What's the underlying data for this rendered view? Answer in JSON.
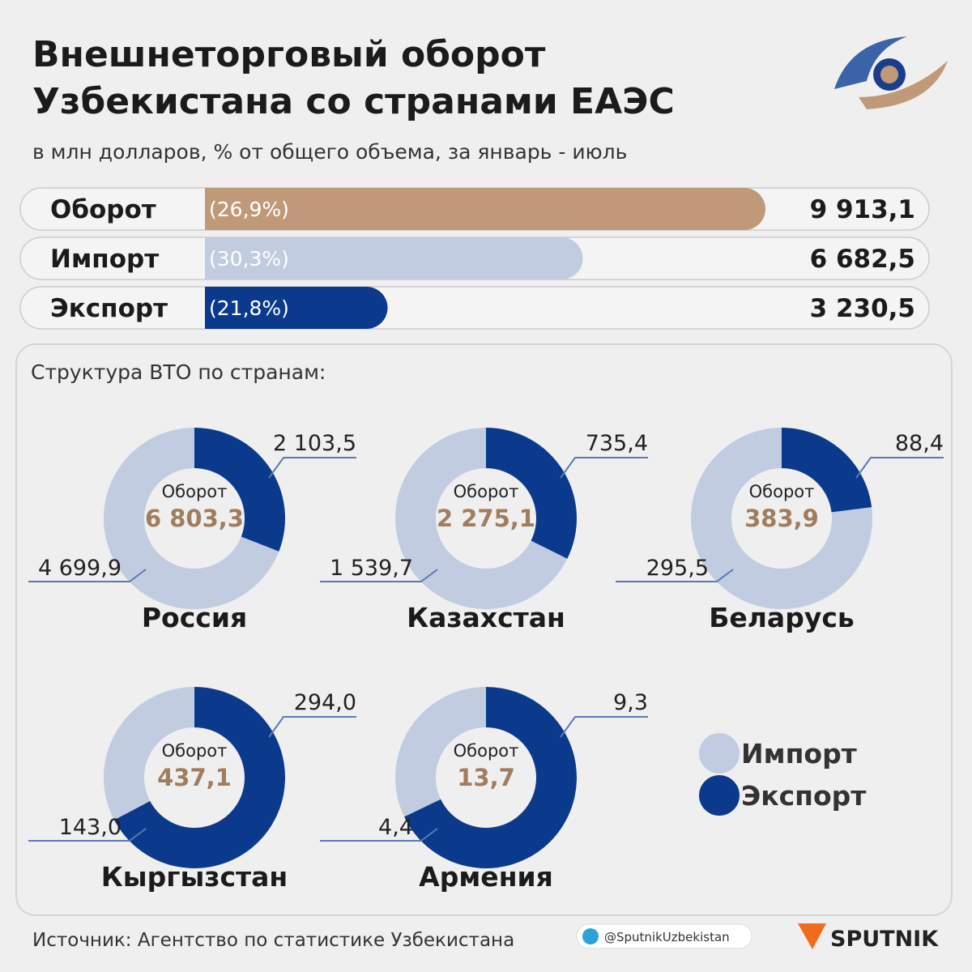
{
  "chart_data": [
    {
      "type": "bar",
      "title": [
        "Внешнеторговый оборот",
        "Узбекистана со странами ЕАЭС"
      ],
      "subtitle": "в млн долларов, % от общего объема, за январь - июль",
      "categories": [
        "Оборот",
        "Импорт",
        "Экспорт"
      ],
      "values": [
        9913.1,
        6682.5,
        3230.5
      ],
      "value_labels": [
        "9 913,1",
        "6 682,5",
        "3 230,5"
      ],
      "share_labels": [
        "(26,9%)",
        "(30,3%)",
        "(21,8%)"
      ],
      "colors": [
        "#c09a78",
        "#c1cce0",
        "#0b3a8c"
      ]
    },
    {
      "type": "donut",
      "title": "Структура ВТО по странам:",
      "center_label": "Оборот",
      "series": [
        {
          "name": "Импорт",
          "color": "#c1cce0"
        },
        {
          "name": "Экспорт",
          "color": "#0b3a8c"
        }
      ],
      "countries": [
        {
          "name": "Россия",
          "values": [
            4699.9,
            2103.5
          ],
          "value_labels": [
            "4 699,9",
            "2 103,5"
          ],
          "total": 6803.3,
          "total_label": "6 803,3"
        },
        {
          "name": "Казахстан",
          "values": [
            1539.7,
            735.4
          ],
          "value_labels": [
            "1 539,7",
            "735,4"
          ],
          "total": 2275.1,
          "total_label": "2 275,1"
        },
        {
          "name": "Беларусь",
          "values": [
            295.5,
            88.4
          ],
          "value_labels": [
            "295,5",
            "88,4"
          ],
          "total": 383.9,
          "total_label": "383,9"
        },
        {
          "name": "Кыргызстан",
          "values": [
            143.0,
            294.0
          ],
          "value_labels": [
            "143,0",
            "294,0"
          ],
          "total": 437.1,
          "total_label": "437,1"
        },
        {
          "name": "Армения",
          "values": [
            4.4,
            9.3
          ],
          "value_labels": [
            "4,4",
            "9,3"
          ],
          "total": 13.7,
          "total_label": "13,7"
        }
      ]
    }
  ],
  "source": "Источник: Агентство по статистике Узбекистана",
  "telegram": "@SputnikUzbekistan",
  "brand": "SPUTNIK"
}
